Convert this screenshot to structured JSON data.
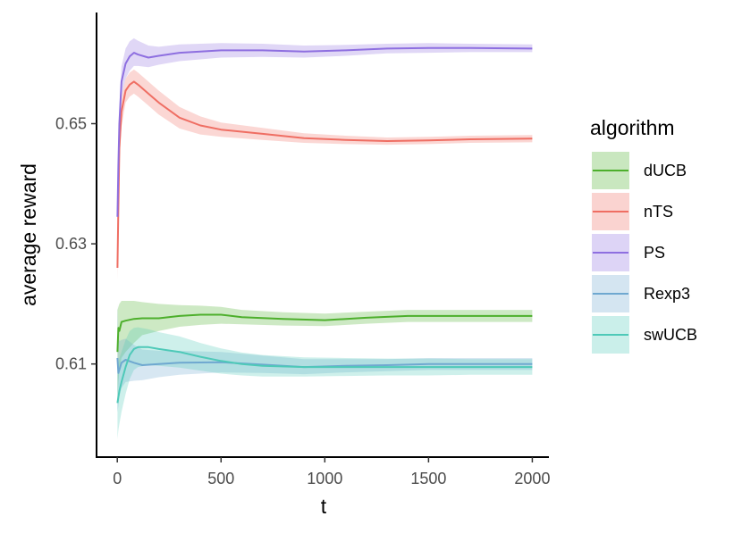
{
  "chart_data": {
    "type": "line",
    "title": "",
    "xlabel": "t",
    "ylabel": "average reward",
    "xlim": [
      -100,
      2080
    ],
    "ylim": [
      0.5945,
      0.6685
    ],
    "x_ticks": [
      0,
      500,
      1000,
      1500,
      2000
    ],
    "x_tick_labels": [
      "0",
      "500",
      "1000",
      "1500",
      "2000"
    ],
    "y_ticks": [
      0.61,
      0.63,
      0.65
    ],
    "y_tick_labels": [
      "0.61",
      "0.63",
      "0.65"
    ],
    "grid": false,
    "legend": {
      "title": "algorithm",
      "position": "right"
    },
    "series": [
      {
        "name": "dUCB",
        "color": "#4DAF2C",
        "x": [
          1,
          5,
          10,
          20,
          40,
          80,
          120,
          200,
          300,
          400,
          500,
          600,
          800,
          1000,
          1200,
          1400,
          1600,
          1800,
          2000
        ],
        "y": [
          0.612,
          0.616,
          0.6155,
          0.617,
          0.6172,
          0.6175,
          0.6176,
          0.6176,
          0.618,
          0.6182,
          0.6182,
          0.6178,
          0.6175,
          0.6173,
          0.6177,
          0.618,
          0.618,
          0.618,
          0.618
        ],
        "lower": [
          0.604,
          0.607,
          0.609,
          0.611,
          0.612,
          0.6135,
          0.6148,
          0.6155,
          0.6162,
          0.6165,
          0.6167,
          0.6166,
          0.6164,
          0.6163,
          0.6167,
          0.617,
          0.617,
          0.617,
          0.617
        ],
        "upper": [
          0.619,
          0.6195,
          0.62,
          0.6205,
          0.6205,
          0.6205,
          0.6203,
          0.62,
          0.6198,
          0.6197,
          0.6195,
          0.619,
          0.6186,
          0.6184,
          0.6187,
          0.619,
          0.619,
          0.619,
          0.619
        ]
      },
      {
        "name": "nTS",
        "color": "#EF6E63",
        "x": [
          1,
          5,
          10,
          20,
          40,
          60,
          80,
          100,
          150,
          200,
          300,
          400,
          500,
          700,
          900,
          1100,
          1300,
          1500,
          1700,
          2000
        ],
        "y": [
          0.626,
          0.636,
          0.646,
          0.652,
          0.6555,
          0.6565,
          0.657,
          0.6565,
          0.655,
          0.6535,
          0.651,
          0.6497,
          0.649,
          0.6483,
          0.6476,
          0.6473,
          0.6471,
          0.6472,
          0.6474,
          0.6475
        ],
        "lower": [
          0.624,
          0.633,
          0.643,
          0.6495,
          0.6535,
          0.6545,
          0.655,
          0.6545,
          0.653,
          0.6515,
          0.6492,
          0.6482,
          0.6478,
          0.6473,
          0.6468,
          0.6466,
          0.6465,
          0.6466,
          0.6468,
          0.6469
        ],
        "upper": [
          0.628,
          0.6385,
          0.6485,
          0.6545,
          0.6575,
          0.6585,
          0.659,
          0.6585,
          0.657,
          0.6555,
          0.6528,
          0.6512,
          0.6502,
          0.6493,
          0.6484,
          0.648,
          0.6477,
          0.6478,
          0.648,
          0.6481
        ]
      },
      {
        "name": "PS",
        "color": "#8E6FE0",
        "x": [
          1,
          5,
          10,
          20,
          40,
          60,
          80,
          100,
          150,
          200,
          300,
          400,
          500,
          700,
          900,
          1100,
          1300,
          1500,
          1700,
          2000
        ],
        "y": [
          0.6345,
          0.643,
          0.65,
          0.657,
          0.66,
          0.6612,
          0.6618,
          0.6615,
          0.661,
          0.6613,
          0.6618,
          0.662,
          0.6622,
          0.6622,
          0.662,
          0.6622,
          0.6625,
          0.6626,
          0.6626,
          0.6625
        ],
        "lower": [
          0.6325,
          0.6405,
          0.6475,
          0.6545,
          0.6575,
          0.6588,
          0.6596,
          0.6596,
          0.6594,
          0.6598,
          0.6604,
          0.6607,
          0.661,
          0.6611,
          0.661,
          0.6613,
          0.6617,
          0.6618,
          0.6619,
          0.6619
        ],
        "upper": [
          0.6365,
          0.6455,
          0.6525,
          0.6595,
          0.6625,
          0.6637,
          0.6642,
          0.6638,
          0.663,
          0.6628,
          0.6632,
          0.6633,
          0.6634,
          0.6633,
          0.663,
          0.6631,
          0.6633,
          0.6634,
          0.6633,
          0.6632
        ]
      },
      {
        "name": "Rexp3",
        "color": "#6FA8D0",
        "x": [
          1,
          5,
          10,
          20,
          40,
          80,
          120,
          200,
          300,
          500,
          700,
          900,
          1100,
          1300,
          1500,
          1700,
          2000
        ],
        "y": [
          0.611,
          0.6085,
          0.609,
          0.6102,
          0.6107,
          0.6102,
          0.6098,
          0.61,
          0.6102,
          0.6103,
          0.6099,
          0.6095,
          0.6097,
          0.6098,
          0.61,
          0.61,
          0.61
        ],
        "lower": [
          0.602,
          0.603,
          0.6045,
          0.606,
          0.607,
          0.6072,
          0.6073,
          0.6078,
          0.6082,
          0.6086,
          0.6085,
          0.6083,
          0.6086,
          0.6088,
          0.609,
          0.609,
          0.609
        ],
        "upper": [
          0.62,
          0.6145,
          0.6138,
          0.614,
          0.6142,
          0.6132,
          0.6124,
          0.6122,
          0.6122,
          0.612,
          0.6114,
          0.6108,
          0.6108,
          0.6108,
          0.611,
          0.611,
          0.611
        ]
      },
      {
        "name": "swUCB",
        "color": "#4EC9B8",
        "x": [
          1,
          5,
          10,
          20,
          40,
          60,
          80,
          100,
          150,
          200,
          300,
          400,
          500,
          600,
          700,
          900,
          1100,
          1300,
          1500,
          1700,
          2000
        ],
        "y": [
          0.6035,
          0.6045,
          0.6055,
          0.607,
          0.6095,
          0.6115,
          0.6125,
          0.6128,
          0.6128,
          0.6125,
          0.612,
          0.6112,
          0.6105,
          0.61,
          0.6097,
          0.6095,
          0.6095,
          0.6095,
          0.6095,
          0.6095,
          0.6095
        ],
        "lower": [
          0.5975,
          0.599,
          0.6,
          0.602,
          0.605,
          0.6075,
          0.609,
          0.6095,
          0.6098,
          0.6097,
          0.6094,
          0.6089,
          0.6084,
          0.6081,
          0.6079,
          0.6079,
          0.608,
          0.6081,
          0.6081,
          0.6082,
          0.6082
        ],
        "upper": [
          0.6095,
          0.61,
          0.611,
          0.612,
          0.614,
          0.6155,
          0.616,
          0.6161,
          0.6158,
          0.6153,
          0.6146,
          0.6135,
          0.6126,
          0.6119,
          0.6115,
          0.6111,
          0.611,
          0.6109,
          0.6109,
          0.6108,
          0.6108
        ]
      }
    ]
  }
}
